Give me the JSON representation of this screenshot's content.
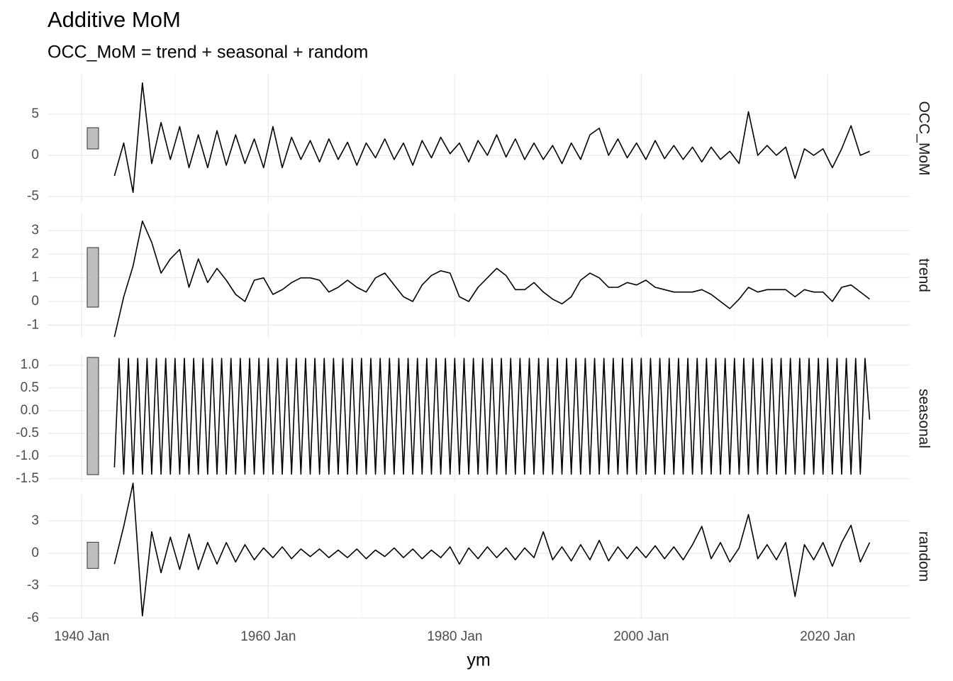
{
  "chart_data": {
    "type": "line",
    "title": "Additive MoM",
    "subtitle": "OCC_MoM = trend + seasonal + random",
    "x_label": "ym",
    "xlim": [
      1936.4,
      2028.8
    ],
    "xticks": [
      {
        "value": 1940,
        "label": "1940 Jan"
      },
      {
        "value": 1960,
        "label": "1960 Jan"
      },
      {
        "value": 1980,
        "label": "1980 Jan"
      },
      {
        "value": 2000,
        "label": "2000 Jan"
      },
      {
        "value": 2020,
        "label": "2020 Jan"
      }
    ],
    "xminor": [
      1950,
      1970,
      1990,
      2010
    ],
    "color": "#000000",
    "bar_color": "#bebebe",
    "grid": true,
    "panels": [
      {
        "label": "OCC_MoM",
        "ylim": [
          -5.69,
          9.83
        ],
        "yticks": [
          -5,
          0,
          5
        ],
        "range_bar": [
          0.78,
          3.36
        ],
        "x": [
          1943.5,
          1944.5,
          1945.5,
          1946.5,
          1947.5,
          1948.5,
          1949.5,
          1950.5,
          1951.5,
          1952.5,
          1953.5,
          1954.5,
          1955.5,
          1956.5,
          1957.5,
          1958.5,
          1959.5,
          1960.5,
          1961.5,
          1962.5,
          1963.5,
          1964.5,
          1965.5,
          1966.5,
          1967.5,
          1968.5,
          1969.5,
          1970.5,
          1971.5,
          1972.5,
          1973.5,
          1974.5,
          1975.5,
          1976.5,
          1977.5,
          1978.5,
          1979.5,
          1980.5,
          1981.5,
          1982.5,
          1983.5,
          1984.5,
          1985.5,
          1986.5,
          1987.5,
          1988.5,
          1989.5,
          1990.5,
          1991.5,
          1992.5,
          1993.5,
          1994.5,
          1995.5,
          1996.5,
          1997.5,
          1998.5,
          1999.5,
          2000.5,
          2001.5,
          2002.5,
          2003.5,
          2004.5,
          2005.5,
          2006.5,
          2007.5,
          2008.5,
          2009.5,
          2010.5,
          2011.5,
          2012.5,
          2013.5,
          2014.5,
          2015.5,
          2016.5,
          2017.5,
          2018.5,
          2019.5,
          2020.5,
          2021.5,
          2022.5,
          2023.5,
          2024.5
        ],
        "values": [
          -2.5,
          1.5,
          -4.5,
          8.8,
          -1.0,
          4.0,
          -0.5,
          3.5,
          -1.5,
          2.5,
          -1.5,
          3.0,
          -1.2,
          2.5,
          -1.0,
          2.0,
          -1.5,
          3.5,
          -1.5,
          2.2,
          -0.5,
          1.8,
          -0.8,
          2.0,
          -0.5,
          1.6,
          -1.2,
          1.5,
          -0.3,
          2.0,
          -0.5,
          1.5,
          -1.2,
          1.8,
          -0.3,
          2.2,
          0.2,
          1.5,
          -0.8,
          1.8,
          0.0,
          2.5,
          -0.2,
          2.0,
          -0.5,
          1.5,
          -0.5,
          1.2,
          -1.0,
          1.5,
          -0.5,
          2.5,
          3.3,
          0.0,
          2.0,
          -0.3,
          1.5,
          -0.5,
          1.8,
          -0.4,
          1.2,
          -0.5,
          1.0,
          -0.8,
          1.0,
          -0.5,
          0.5,
          -1.0,
          5.3,
          0.0,
          1.2,
          0.0,
          1.0,
          -2.8,
          0.8,
          0.0,
          0.8,
          -1.5,
          0.8,
          3.6,
          0.0,
          0.5
        ]
      },
      {
        "label": "trend",
        "ylim": [
          -1.53,
          3.75
        ],
        "yticks": [
          -1,
          0,
          1,
          2,
          3
        ],
        "range_bar": [
          -0.24,
          2.28
        ],
        "x": [
          1943.5,
          1944.5,
          1945.5,
          1946.5,
          1947.5,
          1948.5,
          1949.5,
          1950.5,
          1951.5,
          1952.5,
          1953.5,
          1954.5,
          1955.5,
          1956.5,
          1957.5,
          1958.5,
          1959.5,
          1960.5,
          1961.5,
          1962.5,
          1963.5,
          1964.5,
          1965.5,
          1966.5,
          1967.5,
          1968.5,
          1969.5,
          1970.5,
          1971.5,
          1972.5,
          1973.5,
          1974.5,
          1975.5,
          1976.5,
          1977.5,
          1978.5,
          1979.5,
          1980.5,
          1981.5,
          1982.5,
          1983.5,
          1984.5,
          1985.5,
          1986.5,
          1987.5,
          1988.5,
          1989.5,
          1990.5,
          1991.5,
          1992.5,
          1993.5,
          1994.5,
          1995.5,
          1996.5,
          1997.5,
          1998.5,
          1999.5,
          2000.5,
          2001.5,
          2002.5,
          2003.5,
          2004.5,
          2005.5,
          2006.5,
          2007.5,
          2008.5,
          2009.5,
          2010.5,
          2011.5,
          2012.5,
          2013.5,
          2014.5,
          2015.5,
          2016.5,
          2017.5,
          2018.5,
          2019.5,
          2020.5,
          2021.5,
          2022.5,
          2023.5,
          2024.5
        ],
        "values": [
          -1.5,
          0.2,
          1.5,
          3.4,
          2.5,
          1.2,
          1.8,
          2.2,
          0.6,
          1.8,
          0.8,
          1.4,
          0.9,
          0.3,
          0.0,
          0.9,
          1.0,
          0.3,
          0.5,
          0.8,
          1.0,
          1.0,
          0.9,
          0.4,
          0.6,
          0.9,
          0.6,
          0.4,
          1.0,
          1.2,
          0.7,
          0.2,
          0.0,
          0.7,
          1.1,
          1.3,
          1.2,
          0.2,
          0.0,
          0.6,
          1.0,
          1.4,
          1.1,
          0.5,
          0.5,
          0.8,
          0.4,
          0.1,
          -0.1,
          0.2,
          0.9,
          1.2,
          1.0,
          0.6,
          0.6,
          0.8,
          0.7,
          0.9,
          0.6,
          0.5,
          0.4,
          0.4,
          0.4,
          0.5,
          0.3,
          0.0,
          -0.3,
          0.1,
          0.6,
          0.4,
          0.5,
          0.5,
          0.5,
          0.2,
          0.5,
          0.4,
          0.4,
          0.0,
          0.6,
          0.7,
          0.4,
          0.1
        ]
      },
      {
        "label": "seasonal",
        "ylim": [
          -1.58,
          1.23
        ],
        "yticks": [
          -1.5,
          {
            "value": -1,
            "label": "-1.0"
          },
          -0.5,
          {
            "value": 0,
            "label": "0.0"
          },
          0.5,
          {
            "value": 1,
            "label": "1.0"
          }
        ],
        "range_bar": [
          -1.41,
          1.17
        ],
        "x": [
          1943.5,
          1944,
          1944.5,
          1945,
          1945.5,
          1946,
          1946.5,
          1947,
          1947.5,
          1948,
          1948.5,
          1949,
          1949.5,
          1950,
          1950.5,
          1951,
          1951.5,
          1952,
          1952.5,
          1953,
          1953.5,
          1954,
          1954.5,
          1955,
          1955.5,
          1956,
          1956.5,
          1957,
          1957.5,
          1958,
          1958.5,
          1959,
          1959.5,
          1960,
          1960.5,
          1961,
          1961.5,
          1962,
          1962.5,
          1963,
          1963.5,
          1964,
          1964.5,
          1965,
          1965.5,
          1966,
          1966.5,
          1967,
          1967.5,
          1968,
          1968.5,
          1969,
          1969.5,
          1970,
          1970.5,
          1971,
          1971.5,
          1972,
          1972.5,
          1973,
          1973.5,
          1974,
          1974.5,
          1975,
          1975.5,
          1976,
          1976.5,
          1977,
          1977.5,
          1978,
          1978.5,
          1979,
          1979.5,
          1980,
          1980.5,
          1981,
          1981.5,
          1982,
          1982.5,
          1983,
          1983.5,
          1984,
          1984.5,
          1985,
          1985.5,
          1986,
          1986.5,
          1987,
          1987.5,
          1988,
          1988.5,
          1989,
          1989.5,
          1990,
          1990.5,
          1991,
          1991.5,
          1992,
          1992.5,
          1993,
          1993.5,
          1994,
          1994.5,
          1995,
          1995.5,
          1996,
          1996.5,
          1997,
          1997.5,
          1998,
          1998.5,
          1999,
          1999.5,
          2000,
          2000.5,
          2001,
          2001.5,
          2002,
          2002.5,
          2003,
          2003.5,
          2004,
          2004.5,
          2005,
          2005.5,
          2006,
          2006.5,
          2007,
          2007.5,
          2008,
          2008.5,
          2009,
          2009.5,
          2010,
          2010.5,
          2011,
          2011.5,
          2012,
          2012.5,
          2013,
          2013.5,
          2014,
          2014.5,
          2015,
          2015.5,
          2016,
          2016.5,
          2017,
          2017.5,
          2018,
          2018.5,
          2019,
          2019.5,
          2020,
          2020.5,
          2021,
          2021.5,
          2022,
          2022.5,
          2023,
          2023.5,
          2024,
          2024.5
        ],
        "values": [
          -1.25,
          1.15,
          -1.4,
          1.15,
          -1.4,
          1.15,
          -1.4,
          1.15,
          -1.4,
          1.15,
          -1.4,
          1.15,
          -1.4,
          1.15,
          -1.4,
          1.15,
          -1.4,
          1.15,
          -1.4,
          1.15,
          -1.4,
          1.15,
          -1.4,
          1.15,
          -1.4,
          1.15,
          -1.4,
          1.15,
          -1.4,
          1.15,
          -1.4,
          1.15,
          -1.4,
          1.15,
          -1.4,
          1.15,
          -1.4,
          1.15,
          -1.4,
          1.15,
          -1.4,
          1.15,
          -1.4,
          1.15,
          -1.4,
          1.15,
          -1.4,
          1.15,
          -1.4,
          1.15,
          -1.4,
          1.15,
          -1.4,
          1.15,
          -1.4,
          1.15,
          -1.4,
          1.15,
          -1.4,
          1.15,
          -1.4,
          1.15,
          -1.4,
          1.15,
          -1.4,
          1.15,
          -1.4,
          1.15,
          -1.4,
          1.15,
          -1.4,
          1.15,
          -1.4,
          1.15,
          -1.4,
          1.15,
          -1.4,
          1.15,
          -1.4,
          1.15,
          -1.4,
          1.15,
          -1.4,
          1.15,
          -1.4,
          1.15,
          -1.4,
          1.15,
          -1.4,
          1.15,
          -1.4,
          1.15,
          -1.4,
          1.15,
          -1.4,
          1.15,
          -1.4,
          1.15,
          -1.4,
          1.15,
          -1.4,
          1.15,
          -1.4,
          1.15,
          -1.4,
          1.15,
          -1.4,
          1.15,
          -1.4,
          1.15,
          -1.4,
          1.15,
          -1.4,
          1.15,
          -1.4,
          1.15,
          -1.4,
          1.15,
          -1.4,
          1.15,
          -1.4,
          1.15,
          -1.4,
          1.15,
          -1.4,
          1.15,
          -1.4,
          1.15,
          -1.4,
          1.15,
          -1.4,
          1.15,
          -1.4,
          1.15,
          -1.4,
          1.15,
          -1.4,
          1.15,
          -1.4,
          1.15,
          -1.4,
          1.15,
          -1.4,
          1.15,
          -1.4,
          1.15,
          -1.4,
          1.15,
          -1.4,
          1.15,
          -1.4,
          1.15,
          -1.4,
          1.15,
          -1.4,
          1.15,
          -1.4,
          1.15,
          -1.4,
          1.15,
          -1.4,
          1.15,
          -0.2
        ]
      },
      {
        "label": "random",
        "ylim": [
          -6.05,
          5.46
        ],
        "yticks": [
          -6,
          -3,
          0,
          3
        ],
        "range_bar": [
          -1.4,
          1.03
        ],
        "x": [
          1943.5,
          1944.5,
          1945.5,
          1946.5,
          1947.5,
          1948.5,
          1949.5,
          1950.5,
          1951.5,
          1952.5,
          1953.5,
          1954.5,
          1955.5,
          1956.5,
          1957.5,
          1958.5,
          1959.5,
          1960.5,
          1961.5,
          1962.5,
          1963.5,
          1964.5,
          1965.5,
          1966.5,
          1967.5,
          1968.5,
          1969.5,
          1970.5,
          1971.5,
          1972.5,
          1973.5,
          1974.5,
          1975.5,
          1976.5,
          1977.5,
          1978.5,
          1979.5,
          1980.5,
          1981.5,
          1982.5,
          1983.5,
          1984.5,
          1985.5,
          1986.5,
          1987.5,
          1988.5,
          1989.5,
          1990.5,
          1991.5,
          1992.5,
          1993.5,
          1994.5,
          1995.5,
          1996.5,
          1997.5,
          1998.5,
          1999.5,
          2000.5,
          2001.5,
          2002.5,
          2003.5,
          2004.5,
          2005.5,
          2006.5,
          2007.5,
          2008.5,
          2009.5,
          2010.5,
          2011.5,
          2012.5,
          2013.5,
          2014.5,
          2015.5,
          2016.5,
          2017.5,
          2018.5,
          2019.5,
          2020.5,
          2021.5,
          2022.5,
          2023.5,
          2024.5
        ],
        "values": [
          -1.0,
          2.5,
          6.5,
          -5.8,
          2.0,
          -1.8,
          1.5,
          -1.5,
          1.8,
          -1.5,
          1.0,
          -1.0,
          1.0,
          -0.8,
          0.8,
          -0.6,
          0.5,
          -0.4,
          0.6,
          -0.5,
          0.4,
          -0.3,
          0.4,
          -0.4,
          0.3,
          -0.4,
          0.4,
          -0.5,
          0.3,
          -0.3,
          0.5,
          -0.4,
          0.4,
          -0.5,
          0.3,
          -0.4,
          0.6,
          -1.0,
          0.5,
          -0.5,
          0.6,
          -0.4,
          0.5,
          -0.6,
          0.5,
          -0.4,
          2.0,
          -0.6,
          0.6,
          -0.7,
          0.8,
          -0.6,
          1.2,
          -0.7,
          0.6,
          -0.5,
          0.6,
          -0.4,
          0.7,
          -0.5,
          0.6,
          -0.6,
          0.8,
          2.5,
          -0.5,
          1.0,
          -0.8,
          0.5,
          3.6,
          -0.5,
          0.8,
          -0.6,
          1.0,
          -4.0,
          0.8,
          -0.6,
          1.0,
          -1.2,
          1.0,
          2.6,
          -0.8,
          1.0
        ]
      }
    ]
  }
}
